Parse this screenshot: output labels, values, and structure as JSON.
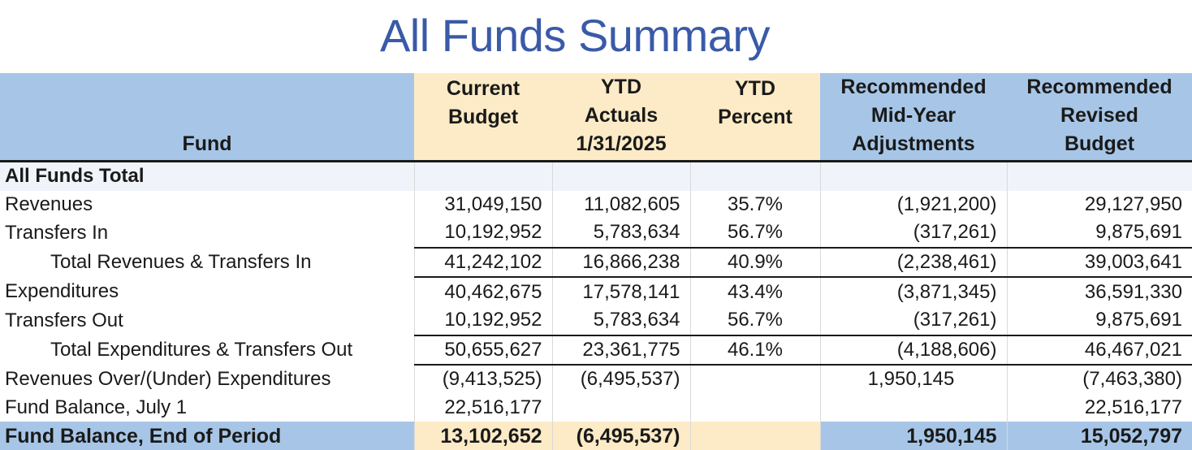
{
  "title": "All Funds Summary",
  "colors": {
    "title": "#3a5aa8",
    "header_blue": "#a7c6e7",
    "header_yellow": "#fcebc6"
  },
  "headers": {
    "fund": "Fund",
    "current_budget": [
      "Current",
      "Budget"
    ],
    "ytd_actuals": [
      "YTD",
      "Actuals",
      "1/31/2025"
    ],
    "ytd_percent": [
      "YTD",
      "Percent"
    ],
    "rec_adjustments": [
      "Recommended",
      "Mid-Year",
      "Adjustments"
    ],
    "rec_revised": [
      "Recommended",
      "Revised",
      "Budget"
    ]
  },
  "section_label": "All Funds Total",
  "rows": [
    {
      "label": "Revenues",
      "current_budget": "31,049,150",
      "ytd_actuals": "11,082,605",
      "ytd_percent": "35.7%",
      "adjustments": "(1,921,200)",
      "revised": "29,127,950"
    },
    {
      "label": "Transfers In",
      "current_budget": "10,192,952",
      "ytd_actuals": "5,783,634",
      "ytd_percent": "56.7%",
      "adjustments": "(317,261)",
      "revised": "9,875,691"
    },
    {
      "label": "Total Revenues & Transfers In",
      "current_budget": "41,242,102",
      "ytd_actuals": "16,866,238",
      "ytd_percent": "40.9%",
      "adjustments": "(2,238,461)",
      "revised": "39,003,641"
    },
    {
      "label": "Expenditures",
      "current_budget": "40,462,675",
      "ytd_actuals": "17,578,141",
      "ytd_percent": "43.4%",
      "adjustments": "(3,871,345)",
      "revised": "36,591,330"
    },
    {
      "label": "Transfers Out",
      "current_budget": "10,192,952",
      "ytd_actuals": "5,783,634",
      "ytd_percent": "56.7%",
      "adjustments": "(317,261)",
      "revised": "9,875,691"
    },
    {
      "label": "Total Expenditures & Transfers Out",
      "current_budget": "50,655,627",
      "ytd_actuals": "23,361,775",
      "ytd_percent": "46.1%",
      "adjustments": "(4,188,606)",
      "revised": "46,467,021"
    },
    {
      "label": "Revenues Over/(Under) Expenditures",
      "current_budget": "(9,413,525)",
      "ytd_actuals": "(6,495,537)",
      "ytd_percent": "",
      "adjustments": "1,950,145",
      "revised": "(7,463,380)"
    },
    {
      "label": "Fund Balance, July 1",
      "current_budget": "22,516,177",
      "ytd_actuals": "",
      "ytd_percent": "",
      "adjustments": "",
      "revised": "22,516,177"
    }
  ],
  "final_row": {
    "label": "Fund Balance, End of Period",
    "current_budget": "13,102,652",
    "ytd_actuals": "(6,495,537)",
    "ytd_percent": "",
    "adjustments": "1,950,145",
    "revised": "15,052,797"
  }
}
